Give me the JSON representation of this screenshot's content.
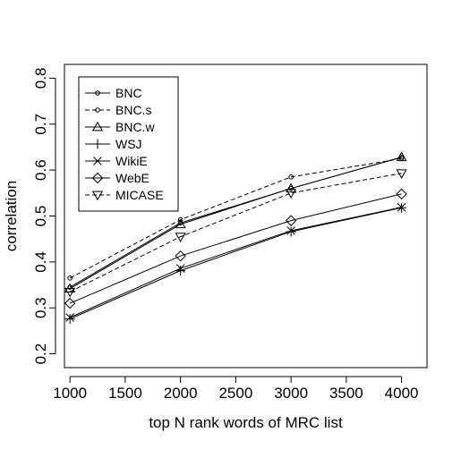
{
  "chart_data": {
    "type": "line",
    "title": "",
    "xlabel": "top N rank words of MRC list",
    "ylabel": "correlation",
    "x": [
      1000,
      2000,
      3000,
      4000
    ],
    "xlim": [
      950,
      4230
    ],
    "ylim": [
      0.17,
      0.83
    ],
    "xticks": [
      1000,
      1500,
      2000,
      2500,
      3000,
      3500,
      4000
    ],
    "yticks": [
      0.2,
      0.3,
      0.4,
      0.5,
      0.6,
      0.7,
      0.8
    ],
    "xtick_labels": [
      "1000",
      "1500",
      "2000",
      "2500",
      "3000",
      "3500",
      "4000"
    ],
    "ytick_labels": [
      "0.2",
      "0.3",
      "0.4",
      "0.5",
      "0.6",
      "0.7",
      "0.8"
    ],
    "grid": false,
    "legend_position": "top-left",
    "series": [
      {
        "name": "BNC",
        "values": [
          0.345,
          0.485,
          0.56,
          0.628
        ],
        "line": "solid",
        "marker": "small-circle"
      },
      {
        "name": "BNC.s",
        "values": [
          0.365,
          0.492,
          0.585,
          0.625
        ],
        "line": "dashed",
        "marker": "small-circle"
      },
      {
        "name": "BNC.w",
        "values": [
          0.342,
          0.482,
          0.56,
          0.628
        ],
        "line": "solid",
        "marker": "triangle-up"
      },
      {
        "name": "WSJ",
        "values": [
          0.276,
          0.381,
          0.466,
          0.518
        ],
        "line": "solid",
        "marker": "plus"
      },
      {
        "name": "WikiE",
        "values": [
          0.279,
          0.386,
          0.468,
          0.519
        ],
        "line": "solid",
        "marker": "cross"
      },
      {
        "name": "WebE",
        "values": [
          0.31,
          0.413,
          0.49,
          0.548
        ],
        "line": "solid",
        "marker": "diamond"
      },
      {
        "name": "MICASE",
        "values": [
          0.335,
          0.455,
          0.55,
          0.593
        ],
        "line": "dashed",
        "marker": "triangle-down"
      }
    ]
  }
}
